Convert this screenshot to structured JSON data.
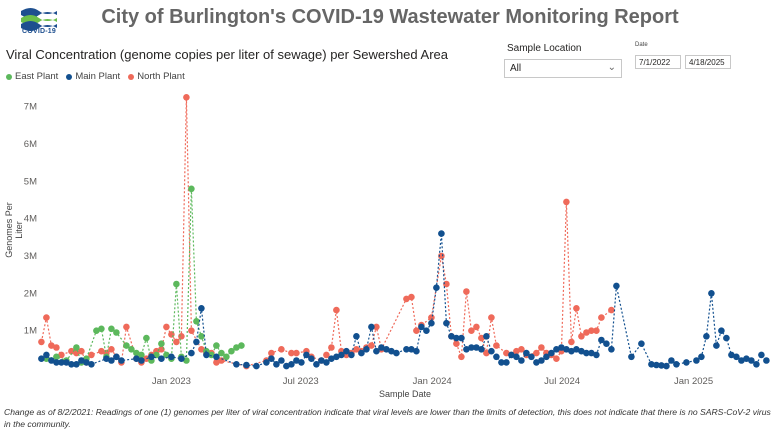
{
  "header": {
    "logo_text": "COVID-19",
    "title": "City of Burlington's COVID-19 Wastewater Monitoring Report",
    "subtitle": "Viral Concentration (genome copies per liter of sewage) per Sewershed Area"
  },
  "filters": {
    "location_label": "Sample Location",
    "location_value": "All",
    "date_label": "Date",
    "date_start": "7/1/2022",
    "date_end": "4/18/2025"
  },
  "footnote": "Change as of 8/2/2021: Readings of one (1) genomes per liter of viral concentration indicate that viral levels are lower than the limits of detection, this does not indicate that there is no SARS-CoV-2 virus in the community.",
  "colors": {
    "East Plant": "#5cb85c",
    "Main Plant": "#12508f",
    "North Plant": "#ef6a5a"
  },
  "chart_data": {
    "type": "scatter",
    "xlabel": "Sample Date",
    "ylabel": "Genomes Per Liter",
    "ylim": [
      0,
      7500000
    ],
    "y_ticks": [
      {
        "value": 1000000,
        "label": "1M"
      },
      {
        "value": 2000000,
        "label": "2M"
      },
      {
        "value": 3000000,
        "label": "3M"
      },
      {
        "value": 4000000,
        "label": "4M"
      },
      {
        "value": 5000000,
        "label": "5M"
      },
      {
        "value": 6000000,
        "label": "6M"
      },
      {
        "value": 7000000,
        "label": "7M"
      }
    ],
    "x_ticks": [
      {
        "value": "2023-01-01",
        "label": "Jan 2023"
      },
      {
        "value": "2023-07-01",
        "label": "Jul 2023"
      },
      {
        "value": "2024-01-01",
        "label": "Jan 2024"
      },
      {
        "value": "2024-07-01",
        "label": "Jul 2024"
      },
      {
        "value": "2025-01-01",
        "label": "Jan 2025"
      }
    ],
    "xlim": [
      "2022-07-01",
      "2025-04-18"
    ],
    "grid": false,
    "legend_position": "top-left",
    "series": [
      {
        "name": "East Plant",
        "points": [
          [
            "2022-07-10",
            250000
          ],
          [
            "2022-07-24",
            300000
          ],
          [
            "2022-08-07",
            200000
          ],
          [
            "2022-08-21",
            550000
          ],
          [
            "2022-08-28",
            150000
          ],
          [
            "2022-09-04",
            250000
          ],
          [
            "2022-09-18",
            1000000
          ],
          [
            "2022-09-25",
            1050000
          ],
          [
            "2022-10-02",
            300000
          ],
          [
            "2022-10-09",
            1050000
          ],
          [
            "2022-10-16",
            950000
          ],
          [
            "2022-10-30",
            600000
          ],
          [
            "2022-11-06",
            500000
          ],
          [
            "2022-11-13",
            400000
          ],
          [
            "2022-11-20",
            350000
          ],
          [
            "2022-11-27",
            800000
          ],
          [
            "2022-12-04",
            200000
          ],
          [
            "2022-12-11",
            350000
          ],
          [
            "2022-12-18",
            650000
          ],
          [
            "2022-12-25",
            350000
          ],
          [
            "2023-01-01",
            250000
          ],
          [
            "2023-01-08",
            2250000
          ],
          [
            "2023-01-15",
            300000
          ],
          [
            "2023-01-22",
            200000
          ],
          [
            "2023-01-29",
            4800000
          ],
          [
            "2023-02-05",
            1250000
          ],
          [
            "2023-02-12",
            850000
          ],
          [
            "2023-02-19",
            450000
          ],
          [
            "2023-02-26",
            350000
          ],
          [
            "2023-03-05",
            600000
          ],
          [
            "2023-03-12",
            400000
          ],
          [
            "2023-03-19",
            300000
          ],
          [
            "2023-03-26",
            450000
          ],
          [
            "2023-04-02",
            550000
          ],
          [
            "2023-04-09",
            600000
          ]
        ]
      },
      {
        "name": "Main Plant",
        "points": [
          [
            "2022-07-03",
            250000
          ],
          [
            "2022-07-10",
            350000
          ],
          [
            "2022-07-17",
            200000
          ],
          [
            "2022-07-24",
            150000
          ],
          [
            "2022-07-31",
            150000
          ],
          [
            "2022-08-07",
            150000
          ],
          [
            "2022-08-14",
            100000
          ],
          [
            "2022-08-21",
            100000
          ],
          [
            "2022-08-28",
            200000
          ],
          [
            "2022-09-04",
            150000
          ],
          [
            "2022-09-11",
            100000
          ],
          [
            "2022-10-02",
            250000
          ],
          [
            "2022-10-09",
            200000
          ],
          [
            "2022-10-16",
            300000
          ],
          [
            "2022-10-23",
            200000
          ],
          [
            "2022-11-13",
            250000
          ],
          [
            "2022-11-20",
            200000
          ],
          [
            "2022-12-04",
            300000
          ],
          [
            "2022-12-18",
            250000
          ],
          [
            "2023-01-01",
            300000
          ],
          [
            "2023-01-15",
            250000
          ],
          [
            "2023-01-29",
            400000
          ],
          [
            "2023-02-05",
            700000
          ],
          [
            "2023-02-12",
            1600000
          ],
          [
            "2023-02-19",
            350000
          ],
          [
            "2023-03-05",
            300000
          ],
          [
            "2023-04-02",
            100000
          ],
          [
            "2023-04-16",
            80000
          ],
          [
            "2023-04-30",
            50000
          ],
          [
            "2023-05-14",
            150000
          ],
          [
            "2023-05-21",
            250000
          ],
          [
            "2023-05-28",
            100000
          ],
          [
            "2023-06-04",
            200000
          ],
          [
            "2023-06-11",
            50000
          ],
          [
            "2023-06-18",
            100000
          ],
          [
            "2023-06-25",
            200000
          ],
          [
            "2023-07-02",
            150000
          ],
          [
            "2023-07-09",
            350000
          ],
          [
            "2023-07-16",
            250000
          ],
          [
            "2023-07-23",
            100000
          ],
          [
            "2023-07-30",
            200000
          ],
          [
            "2023-08-06",
            150000
          ],
          [
            "2023-08-13",
            250000
          ],
          [
            "2023-08-20",
            300000
          ],
          [
            "2023-08-27",
            350000
          ],
          [
            "2023-09-03",
            450000
          ],
          [
            "2023-09-10",
            350000
          ],
          [
            "2023-09-17",
            850000
          ],
          [
            "2023-09-24",
            400000
          ],
          [
            "2023-10-01",
            500000
          ],
          [
            "2023-10-08",
            1100000
          ],
          [
            "2023-10-15",
            450000
          ],
          [
            "2023-10-22",
            550000
          ],
          [
            "2023-10-29",
            500000
          ],
          [
            "2023-11-05",
            450000
          ],
          [
            "2023-11-12",
            400000
          ],
          [
            "2023-11-26",
            500000
          ],
          [
            "2023-12-03",
            500000
          ],
          [
            "2023-12-10",
            450000
          ],
          [
            "2023-12-17",
            1100000
          ],
          [
            "2023-12-24",
            1000000
          ],
          [
            "2023-12-31",
            1200000
          ],
          [
            "2024-01-07",
            2150000
          ],
          [
            "2024-01-14",
            3600000
          ],
          [
            "2024-01-21",
            1200000
          ],
          [
            "2024-01-28",
            850000
          ],
          [
            "2024-02-04",
            800000
          ],
          [
            "2024-02-11",
            800000
          ],
          [
            "2024-02-18",
            500000
          ],
          [
            "2024-02-25",
            550000
          ],
          [
            "2024-03-03",
            550000
          ],
          [
            "2024-03-10",
            500000
          ],
          [
            "2024-03-17",
            850000
          ],
          [
            "2024-03-24",
            450000
          ],
          [
            "2024-03-31",
            300000
          ],
          [
            "2024-04-07",
            150000
          ],
          [
            "2024-04-14",
            150000
          ],
          [
            "2024-04-21",
            350000
          ],
          [
            "2024-04-28",
            300000
          ],
          [
            "2024-05-05",
            200000
          ],
          [
            "2024-05-12",
            400000
          ],
          [
            "2024-05-19",
            300000
          ],
          [
            "2024-05-26",
            150000
          ],
          [
            "2024-06-02",
            200000
          ],
          [
            "2024-06-09",
            300000
          ],
          [
            "2024-06-16",
            400000
          ],
          [
            "2024-06-23",
            500000
          ],
          [
            "2024-06-30",
            550000
          ],
          [
            "2024-07-07",
            500000
          ],
          [
            "2024-07-14",
            450000
          ],
          [
            "2024-07-21",
            500000
          ],
          [
            "2024-07-28",
            450000
          ],
          [
            "2024-08-04",
            400000
          ],
          [
            "2024-08-11",
            400000
          ],
          [
            "2024-08-18",
            350000
          ],
          [
            "2024-08-25",
            750000
          ],
          [
            "2024-09-01",
            650000
          ],
          [
            "2024-09-08",
            500000
          ],
          [
            "2024-09-15",
            2200000
          ],
          [
            "2024-10-06",
            300000
          ],
          [
            "2024-10-20",
            650000
          ],
          [
            "2024-11-03",
            100000
          ],
          [
            "2024-11-10",
            80000
          ],
          [
            "2024-11-17",
            70000
          ],
          [
            "2024-11-24",
            50000
          ],
          [
            "2024-12-01",
            200000
          ],
          [
            "2024-12-08",
            100000
          ],
          [
            "2024-12-22",
            150000
          ],
          [
            "2025-01-05",
            200000
          ],
          [
            "2025-01-12",
            300000
          ],
          [
            "2025-01-19",
            850000
          ],
          [
            "2025-01-26",
            2000000
          ],
          [
            "2025-02-02",
            600000
          ],
          [
            "2025-02-09",
            1000000
          ],
          [
            "2025-02-16",
            800000
          ],
          [
            "2025-02-23",
            350000
          ],
          [
            "2025-03-02",
            300000
          ],
          [
            "2025-03-09",
            200000
          ],
          [
            "2025-03-16",
            250000
          ],
          [
            "2025-03-23",
            200000
          ],
          [
            "2025-03-30",
            100000
          ],
          [
            "2025-04-06",
            350000
          ],
          [
            "2025-04-13",
            200000
          ]
        ]
      },
      {
        "name": "North Plant",
        "points": [
          [
            "2022-07-03",
            700000
          ],
          [
            "2022-07-10",
            1350000
          ],
          [
            "2022-07-17",
            600000
          ],
          [
            "2022-07-24",
            550000
          ],
          [
            "2022-07-31",
            350000
          ],
          [
            "2022-08-14",
            450000
          ],
          [
            "2022-08-21",
            400000
          ],
          [
            "2022-08-28",
            450000
          ],
          [
            "2022-09-04",
            150000
          ],
          [
            "2022-09-11",
            350000
          ],
          [
            "2022-09-25",
            450000
          ],
          [
            "2022-10-02",
            400000
          ],
          [
            "2022-10-09",
            500000
          ],
          [
            "2022-10-16",
            300000
          ],
          [
            "2022-10-23",
            150000
          ],
          [
            "2022-10-30",
            1100000
          ],
          [
            "2022-11-13",
            250000
          ],
          [
            "2022-11-20",
            150000
          ],
          [
            "2022-11-27",
            250000
          ],
          [
            "2022-12-04",
            350000
          ],
          [
            "2022-12-11",
            450000
          ],
          [
            "2022-12-18",
            500000
          ],
          [
            "2022-12-25",
            1100000
          ],
          [
            "2023-01-01",
            900000
          ],
          [
            "2023-01-08",
            700000
          ],
          [
            "2023-01-15",
            850000
          ],
          [
            "2023-01-22",
            7250000
          ],
          [
            "2023-01-29",
            1000000
          ],
          [
            "2023-02-12",
            500000
          ],
          [
            "2023-02-19",
            400000
          ],
          [
            "2023-02-26",
            400000
          ],
          [
            "2023-03-05",
            150000
          ],
          [
            "2023-03-12",
            200000
          ],
          [
            "2023-04-16",
            50000
          ],
          [
            "2023-05-14",
            200000
          ],
          [
            "2023-05-21",
            400000
          ],
          [
            "2023-06-04",
            500000
          ],
          [
            "2023-06-18",
            400000
          ],
          [
            "2023-06-25",
            400000
          ],
          [
            "2023-07-09",
            450000
          ],
          [
            "2023-07-16",
            300000
          ],
          [
            "2023-07-30",
            200000
          ],
          [
            "2023-08-06",
            350000
          ],
          [
            "2023-08-13",
            550000
          ],
          [
            "2023-08-20",
            1550000
          ],
          [
            "2023-08-27",
            450000
          ],
          [
            "2023-09-03",
            350000
          ],
          [
            "2023-09-10",
            400000
          ],
          [
            "2023-09-17",
            500000
          ],
          [
            "2023-09-24",
            450000
          ],
          [
            "2023-10-01",
            550000
          ],
          [
            "2023-10-08",
            600000
          ],
          [
            "2023-10-15",
            1100000
          ],
          [
            "2023-10-22",
            500000
          ],
          [
            "2023-11-26",
            1850000
          ],
          [
            "2023-12-03",
            1900000
          ],
          [
            "2023-12-10",
            1000000
          ],
          [
            "2023-12-17",
            1150000
          ],
          [
            "2023-12-31",
            1350000
          ],
          [
            "2024-01-14",
            3000000
          ],
          [
            "2024-01-21",
            2250000
          ],
          [
            "2024-01-28",
            850000
          ],
          [
            "2024-02-04",
            650000
          ],
          [
            "2024-02-11",
            300000
          ],
          [
            "2024-02-18",
            2050000
          ],
          [
            "2024-02-25",
            1000000
          ],
          [
            "2024-03-03",
            1100000
          ],
          [
            "2024-03-10",
            800000
          ],
          [
            "2024-03-17",
            400000
          ],
          [
            "2024-03-24",
            1350000
          ],
          [
            "2024-03-31",
            600000
          ],
          [
            "2024-04-14",
            400000
          ],
          [
            "2024-04-21",
            350000
          ],
          [
            "2024-04-28",
            450000
          ],
          [
            "2024-05-05",
            500000
          ],
          [
            "2024-05-12",
            350000
          ],
          [
            "2024-05-26",
            400000
          ],
          [
            "2024-06-02",
            550000
          ],
          [
            "2024-06-09",
            400000
          ],
          [
            "2024-06-16",
            350000
          ],
          [
            "2024-06-23",
            250000
          ],
          [
            "2024-06-30",
            450000
          ],
          [
            "2024-07-07",
            4450000
          ],
          [
            "2024-07-14",
            700000
          ],
          [
            "2024-07-21",
            1600000
          ],
          [
            "2024-07-28",
            850000
          ],
          [
            "2024-08-04",
            950000
          ],
          [
            "2024-08-11",
            1000000
          ],
          [
            "2024-08-18",
            1000000
          ],
          [
            "2024-08-25",
            1350000
          ],
          [
            "2024-09-08",
            1550000
          ]
        ]
      }
    ]
  }
}
